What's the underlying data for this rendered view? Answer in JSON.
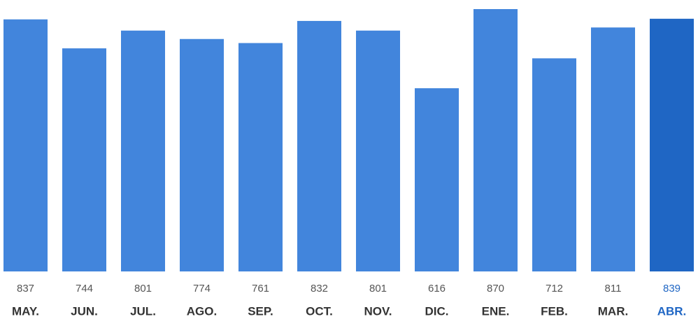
{
  "chart_data": {
    "type": "bar",
    "categories": [
      "MAY.",
      "JUN.",
      "JUL.",
      "AGO.",
      "SEP.",
      "OCT.",
      "NOV.",
      "DIC.",
      "ENE.",
      "FEB.",
      "MAR.",
      "ABR."
    ],
    "values": [
      837,
      744,
      801,
      774,
      761,
      832,
      801,
      616,
      870,
      712,
      811,
      839
    ],
    "color": "#4285dc",
    "highlight_index": 11,
    "highlight_color": "#1f66c4",
    "ylim": [
      28,
      870
    ]
  }
}
